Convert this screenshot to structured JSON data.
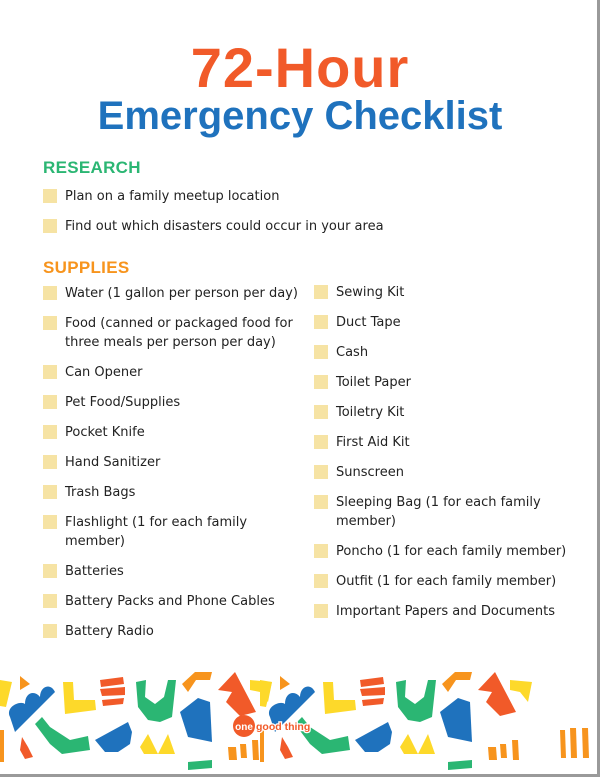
{
  "title": {
    "line1": "72-Hour",
    "line2": "Emergency Checklist"
  },
  "sections": {
    "research": {
      "heading": "RESEARCH",
      "items": [
        "Plan on a family meetup location",
        "Find out which disasters could occur in your area"
      ]
    },
    "supplies": {
      "heading": "SUPPLIES",
      "left_items": [
        "Water (1 gallon per person per day)",
        "Food (canned or packaged food for three meals per person per day)",
        "Can Opener",
        "Pet Food/Supplies",
        "Pocket Knife",
        "Hand Sanitizer",
        "Trash Bags",
        "Flashlight (1 for each family member)",
        "Batteries",
        "Battery Packs and Phone Cables",
        "Battery Radio"
      ],
      "right_items": [
        "Sewing Kit",
        "Duct Tape",
        "Cash",
        "Toilet Paper",
        "Toiletry Kit",
        "First Aid Kit",
        "Sunscreen",
        "Sleeping Bag (1 for each family member)",
        "Poncho (1 for each family member)",
        "Outfit (1 for each family member)",
        "Important Papers and Documents"
      ]
    }
  },
  "logo": {
    "text": "one good thing"
  },
  "colors": {
    "orange": "#f15a29",
    "blue": "#1f72bd",
    "green": "#2bb673",
    "amber": "#f7941d",
    "yellow": "#fdd92a",
    "checkbox": "#f6e3a4"
  }
}
